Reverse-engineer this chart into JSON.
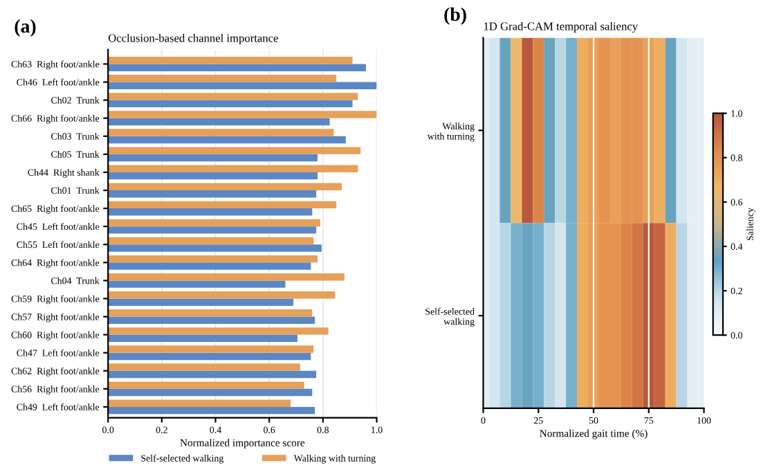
{
  "chart_data": [
    {
      "type": "bar",
      "orientation": "horizontal",
      "title": "Occlusion-based channel importance",
      "annotations": [
        "(a)"
      ],
      "xlabel": "Normalized importance score",
      "categories": [
        "Ch63  Right foot/ankle",
        "Ch46  Left foot/ankle",
        "Ch02  Trunk",
        "Ch66  Right foot/ankle",
        "Ch03  Trunk",
        "Ch05  Trunk",
        "Ch44  Right shank",
        "Ch01  Trunk",
        "Ch65  Right foot/ankle",
        "Ch45  Left foot/ankle",
        "Ch55  Left foot/ankle",
        "Ch64  Right foot/ankle",
        "Ch04  Trunk",
        "Ch59  Right foot/ankle",
        "Ch57  Right foot/ankle",
        "Ch60  Right foot/ankle",
        "Ch47  Left foot/ankle",
        "Ch62  Right foot/ankle",
        "Ch56  Right foot/ankle",
        "Ch49  Left foot/ankle"
      ],
      "series": [
        {
          "name": "Self-selected walking",
          "color": "#5b87c5",
          "values": [
            0.96,
            1.0,
            0.91,
            0.825,
            0.885,
            0.78,
            0.78,
            0.775,
            0.76,
            0.775,
            0.795,
            0.755,
            0.66,
            0.69,
            0.77,
            0.705,
            0.755,
            0.775,
            0.76,
            0.77
          ]
        },
        {
          "name": "Walking with turning",
          "color": "#e5a05a",
          "values": [
            0.91,
            0.85,
            0.93,
            1.0,
            0.84,
            0.94,
            0.93,
            0.87,
            0.85,
            0.79,
            0.765,
            0.78,
            0.88,
            0.845,
            0.76,
            0.82,
            0.765,
            0.715,
            0.73,
            0.68
          ]
        }
      ],
      "xlim": [
        0.0,
        1.0
      ],
      "xticks": [
        {
          "value": 0,
          "label": "0.0"
        },
        0.2,
        0.4,
        0.6,
        0.8,
        {
          "value": 1,
          "label": "1.0"
        }
      ],
      "grid": "x",
      "legend": "bottom"
    },
    {
      "type": "heatmap",
      "title": "1D Grad-CAM temporal saliency",
      "annotations": [
        "(b)"
      ],
      "xlabel": "Normalized gait time (%)",
      "clabel": "Saliency",
      "x": [
        0,
        5,
        10,
        15,
        20,
        25,
        30,
        35,
        40,
        45,
        50,
        55,
        60,
        65,
        70,
        75,
        80,
        85,
        90,
        95,
        100
      ],
      "y_categories": [
        "Walking\nwith turning",
        "Self-selected\nwalking"
      ],
      "cells": [
        [
          0.1,
          0.15,
          0.35,
          0.65,
          1.0,
          0.85,
          0.35,
          0.2,
          0.3,
          0.7,
          0.75,
          0.8,
          0.75,
          0.8,
          0.8,
          0.75,
          0.7,
          0.35,
          0.15,
          0.1,
          0.1
        ],
        [
          0.1,
          0.15,
          0.2,
          0.3,
          0.35,
          0.3,
          0.2,
          0.15,
          0.3,
          0.7,
          0.75,
          0.8,
          0.8,
          0.85,
          0.9,
          1.0,
          0.95,
          0.7,
          0.2,
          0.1,
          0.1
        ]
      ],
      "xlim": [
        0,
        100
      ],
      "xticks": [
        0,
        25,
        50,
        75,
        100
      ],
      "clim": [
        0.0,
        1.0
      ],
      "cticks": [
        {
          "value": 0,
          "label": "0.0"
        },
        0.2,
        0.4,
        0.6,
        0.8,
        {
          "value": 1,
          "label": "1.0"
        }
      ],
      "ref_lines": [
        {
          "axis": "x",
          "value": 50,
          "color": "#ffffff"
        },
        {
          "axis": "x",
          "value": 75,
          "color": "#ffffff"
        }
      ]
    }
  ]
}
